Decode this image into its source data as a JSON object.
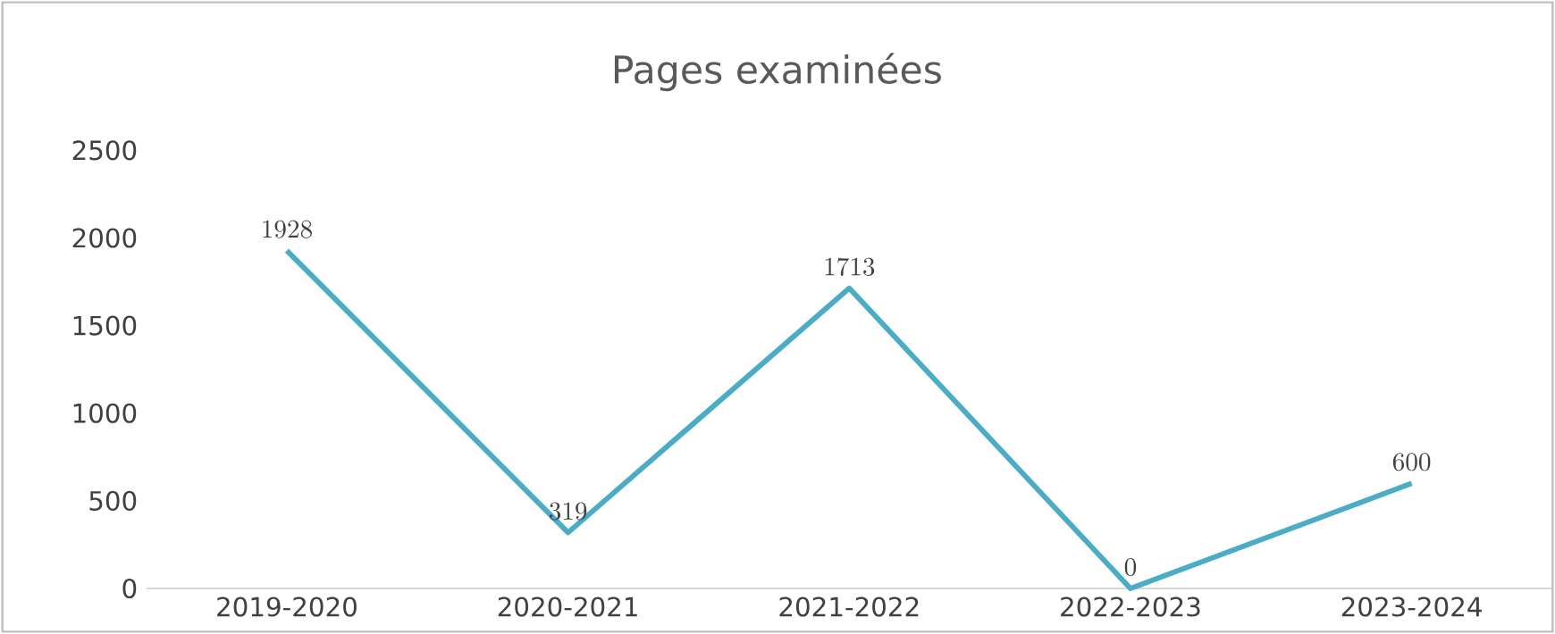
{
  "chart_data": {
    "type": "line",
    "title": "Pages examinées",
    "categories": [
      "2019-2020",
      "2020-2021",
      "2021-2022",
      "2022-2023",
      "2023-2024"
    ],
    "values": [
      1928,
      319,
      1713,
      0,
      600
    ],
    "color": "#4bacc6",
    "ylim": [
      0,
      2500
    ],
    "yticks": [
      0,
      500,
      1000,
      1500,
      2000,
      2500
    ],
    "grid": false,
    "data_labels": true,
    "marker": "none",
    "line_style": "solid"
  }
}
